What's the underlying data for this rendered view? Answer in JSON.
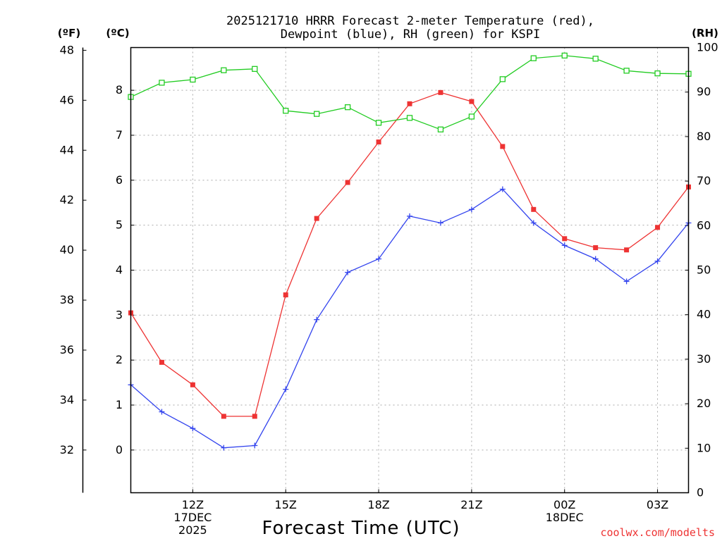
{
  "chart_data": {
    "type": "line",
    "title_line1": "2025121710 HRRR Forecast 2-meter Temperature (red),",
    "title_line2": "Dewpoint (blue), RH (green) for KSPI",
    "xlabel": "Forecast Time (UTC)",
    "credit": "coolwx.com/modelts",
    "units": {
      "fahrenheit": "(ºF)",
      "celsius": "(ºC)",
      "rh": "(RH)"
    },
    "x_range": [
      0,
      18
    ],
    "x_ticks": [
      {
        "x": 2,
        "lines": [
          "12Z",
          "17DEC",
          "2025"
        ]
      },
      {
        "x": 5,
        "lines": [
          "15Z"
        ]
      },
      {
        "x": 8,
        "lines": [
          "18Z"
        ]
      },
      {
        "x": 11,
        "lines": [
          "21Z"
        ]
      },
      {
        "x": 14,
        "lines": [
          "00Z",
          "18DEC"
        ]
      },
      {
        "x": 17,
        "lines": [
          "03Z"
        ]
      }
    ],
    "celsius_axis": {
      "range": [
        -0.95,
        8.95
      ],
      "ticks": [
        0,
        1,
        2,
        3,
        4,
        5,
        6,
        7,
        8
      ]
    },
    "fahrenheit_axis": {
      "ticks": [
        32,
        34,
        36,
        38,
        40,
        42,
        44,
        46,
        48
      ]
    },
    "rh_axis": {
      "range": [
        0,
        100
      ],
      "ticks": [
        0,
        10,
        20,
        30,
        40,
        50,
        60,
        70,
        80,
        90,
        100
      ]
    },
    "hours": [
      0,
      1,
      2,
      3,
      4,
      5,
      6,
      7,
      8,
      9,
      10,
      11,
      12,
      13,
      14,
      15,
      16,
      17,
      18
    ],
    "series": [
      {
        "name": "2-meter Temperature",
        "unit": "C",
        "color": "#ee3333",
        "marker": "filled-square",
        "values": [
          3.05,
          1.95,
          1.45,
          0.75,
          0.75,
          3.45,
          5.15,
          5.95,
          6.85,
          7.7,
          7.95,
          7.75,
          6.75,
          5.35,
          4.7,
          4.5,
          4.45,
          4.95,
          5.85
        ]
      },
      {
        "name": "Dewpoint",
        "unit": "C",
        "color": "#3344ee",
        "marker": "plus",
        "values": [
          1.45,
          0.85,
          0.48,
          0.05,
          0.1,
          1.35,
          2.9,
          3.95,
          4.25,
          5.2,
          5.05,
          5.35,
          5.8,
          5.05,
          4.55,
          4.25,
          3.75,
          4.2,
          5.05
        ]
      },
      {
        "name": "RH",
        "unit": "%",
        "color": "#22cc22",
        "marker": "open-square",
        "values": [
          88.9,
          92.1,
          92.8,
          94.9,
          95.2,
          85.8,
          85.1,
          86.6,
          83.1,
          84.2,
          81.6,
          84.5,
          92.9,
          97.6,
          98.2,
          97.5,
          94.8,
          94.2,
          94.1
        ]
      }
    ]
  }
}
